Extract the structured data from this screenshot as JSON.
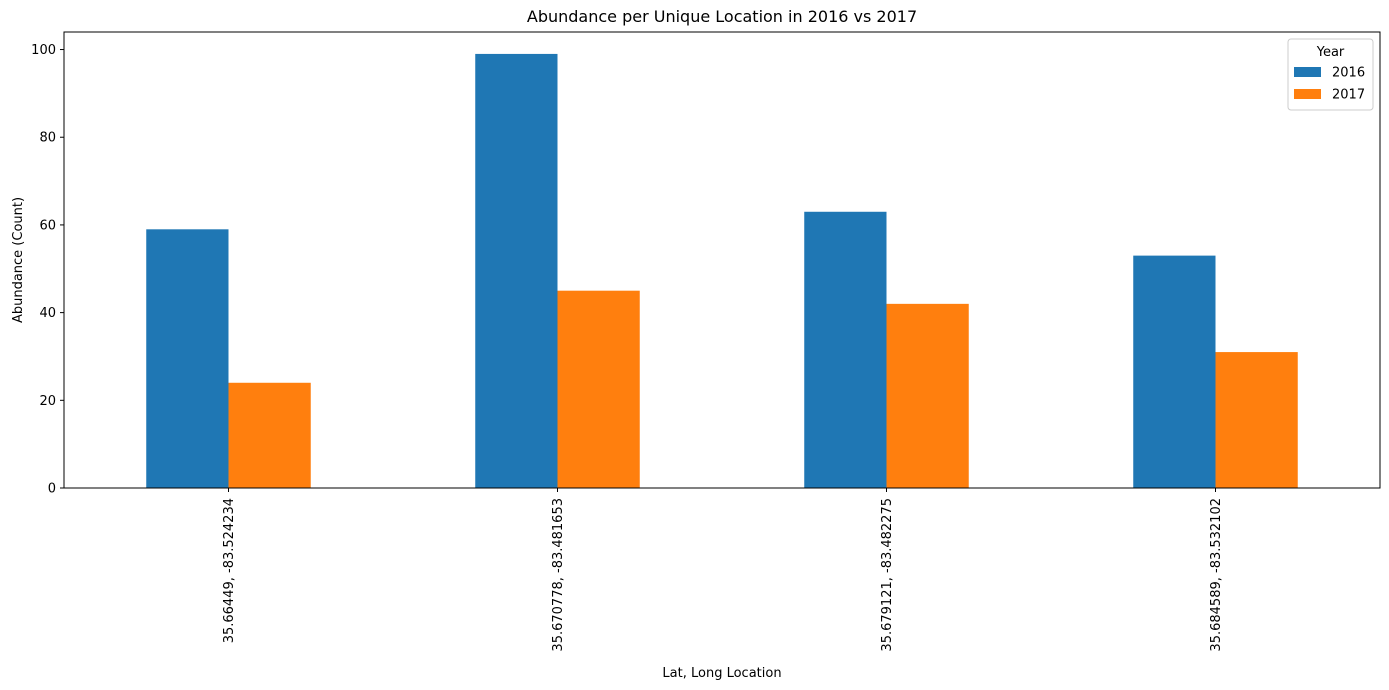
{
  "chart_data": {
    "type": "bar",
    "title": "Abundance per Unique Location in 2016 vs 2017",
    "xlabel": "Lat, Long Location",
    "ylabel": "Abundance (Count)",
    "categories": [
      "35.66449, -83.524234",
      "35.670778, -83.481653",
      "35.679121, -83.482275",
      "35.684589, -83.532102"
    ],
    "series": [
      {
        "name": "2016",
        "values": [
          59,
          99,
          63,
          53
        ],
        "color": "#1f77b4"
      },
      {
        "name": "2017",
        "values": [
          24,
          45,
          42,
          31
        ],
        "color": "#ff7f0e"
      }
    ],
    "ylim": [
      0,
      104
    ],
    "yticks": [
      0,
      20,
      40,
      60,
      80,
      100
    ],
    "grid": false,
    "legend": {
      "title": "Year",
      "placement": "top-right"
    }
  }
}
